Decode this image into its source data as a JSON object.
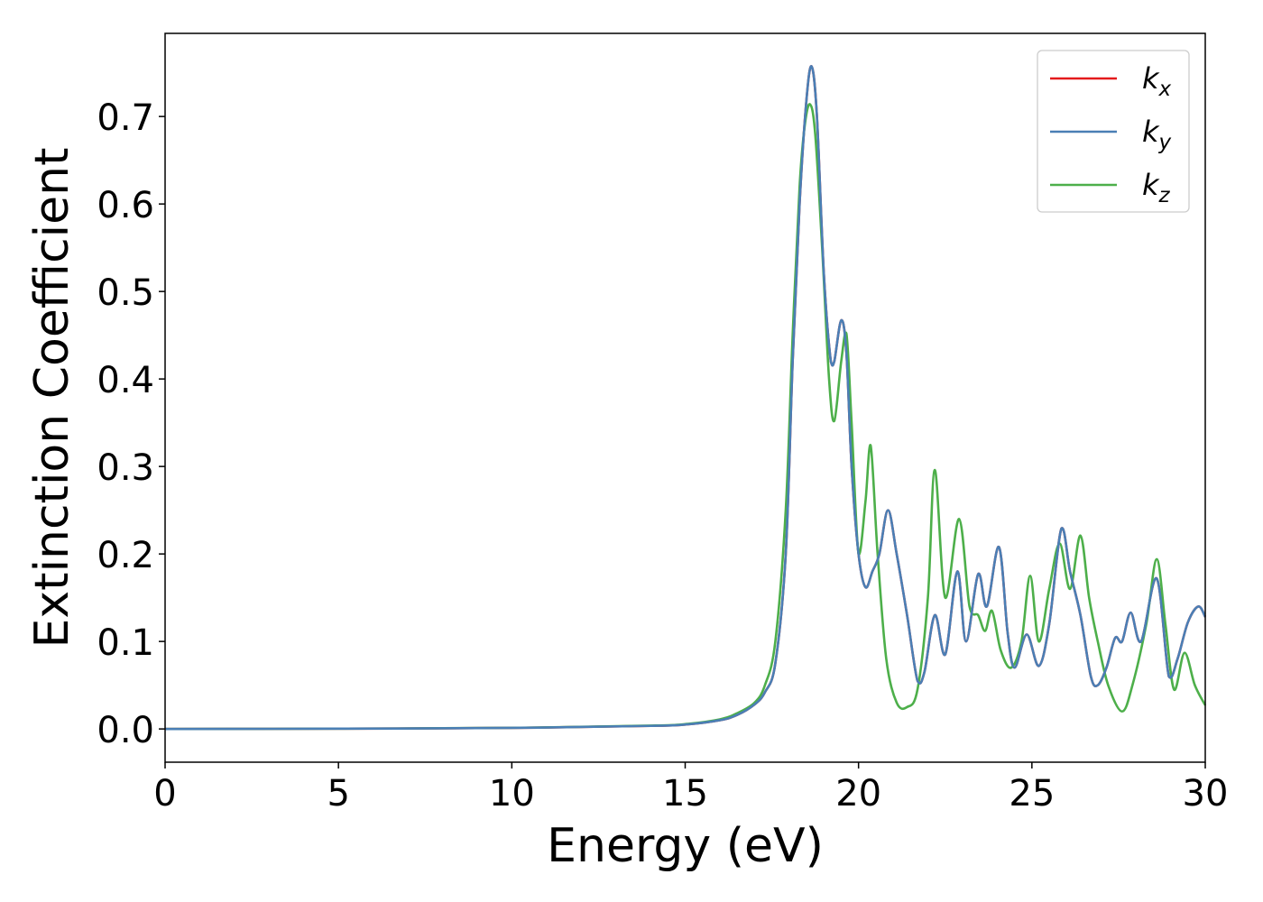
{
  "chart_data": {
    "type": "line",
    "xlabel": "Energy (eV)",
    "ylabel": "Extinction Coefficient",
    "xlim": [
      0,
      30
    ],
    "ylim": [
      -0.038,
      0.795
    ],
    "xticks": [
      0,
      5,
      10,
      15,
      20,
      25,
      30
    ],
    "yticks": [
      0.0,
      0.1,
      0.2,
      0.3,
      0.4,
      0.5,
      0.6,
      0.7
    ],
    "grid": false,
    "legend_position": "top-right",
    "series": [
      {
        "name": "k_x",
        "legend_base": "k",
        "legend_sub": "x",
        "color": "#e41a1c",
        "x": [
          0,
          5,
          10,
          14,
          15,
          16,
          16.5,
          17,
          17.3,
          17.6,
          17.9,
          18.1,
          18.3,
          18.5,
          18.65,
          18.8,
          19.0,
          19.2,
          19.3,
          19.5,
          19.65,
          19.8,
          20.0,
          20.2,
          20.4,
          20.6,
          20.85,
          21.1,
          21.4,
          21.7,
          21.9,
          22.2,
          22.5,
          22.85,
          23.1,
          23.45,
          23.7,
          24.05,
          24.3,
          24.5,
          24.85,
          25.2,
          25.5,
          25.85,
          26.1,
          26.4,
          26.7,
          26.9,
          27.15,
          27.4,
          27.6,
          27.85,
          28.15,
          28.6,
          28.95,
          29.2,
          29.5,
          29.8,
          30
        ],
        "y": [
          0.0,
          0.0003,
          0.0012,
          0.0035,
          0.005,
          0.01,
          0.016,
          0.028,
          0.042,
          0.075,
          0.2,
          0.42,
          0.6,
          0.72,
          0.757,
          0.7,
          0.52,
          0.42,
          0.42,
          0.467,
          0.43,
          0.3,
          0.2,
          0.162,
          0.18,
          0.2,
          0.25,
          0.2,
          0.13,
          0.055,
          0.065,
          0.13,
          0.085,
          0.18,
          0.1,
          0.177,
          0.14,
          0.208,
          0.11,
          0.07,
          0.108,
          0.072,
          0.12,
          0.229,
          0.18,
          0.13,
          0.06,
          0.05,
          0.07,
          0.104,
          0.1,
          0.133,
          0.1,
          0.172,
          0.06,
          0.08,
          0.122,
          0.14,
          0.128
        ]
      },
      {
        "name": "k_y",
        "legend_base": "k",
        "legend_sub": "y",
        "color": "#4a7fb5",
        "x": [
          0,
          5,
          10,
          14,
          15,
          16,
          16.5,
          17,
          17.3,
          17.6,
          17.9,
          18.1,
          18.3,
          18.5,
          18.65,
          18.8,
          19.0,
          19.2,
          19.3,
          19.5,
          19.65,
          19.8,
          20.0,
          20.2,
          20.4,
          20.6,
          20.85,
          21.1,
          21.4,
          21.7,
          21.9,
          22.2,
          22.5,
          22.85,
          23.1,
          23.45,
          23.7,
          24.05,
          24.3,
          24.5,
          24.85,
          25.2,
          25.5,
          25.85,
          26.1,
          26.4,
          26.7,
          26.9,
          27.15,
          27.4,
          27.6,
          27.85,
          28.15,
          28.6,
          28.95,
          29.2,
          29.5,
          29.8,
          30
        ],
        "y": [
          0.0,
          0.0003,
          0.0012,
          0.0035,
          0.005,
          0.01,
          0.016,
          0.028,
          0.042,
          0.075,
          0.2,
          0.42,
          0.6,
          0.72,
          0.757,
          0.7,
          0.52,
          0.42,
          0.42,
          0.467,
          0.43,
          0.3,
          0.2,
          0.162,
          0.18,
          0.2,
          0.25,
          0.2,
          0.13,
          0.055,
          0.065,
          0.13,
          0.085,
          0.18,
          0.1,
          0.177,
          0.14,
          0.208,
          0.11,
          0.07,
          0.108,
          0.072,
          0.12,
          0.229,
          0.18,
          0.13,
          0.06,
          0.05,
          0.07,
          0.104,
          0.1,
          0.133,
          0.1,
          0.172,
          0.06,
          0.08,
          0.122,
          0.14,
          0.128
        ]
      },
      {
        "name": "k_z",
        "legend_base": "k",
        "legend_sub": "z",
        "color": "#4daf4a",
        "x": [
          0,
          5,
          10,
          14,
          15,
          16,
          16.5,
          17,
          17.3,
          17.6,
          17.9,
          18.1,
          18.3,
          18.45,
          18.6,
          18.75,
          18.95,
          19.15,
          19.3,
          19.5,
          19.65,
          19.8,
          20.0,
          20.2,
          20.35,
          20.55,
          20.8,
          21.1,
          21.4,
          21.7,
          22.0,
          22.2,
          22.5,
          22.9,
          23.2,
          23.45,
          23.65,
          23.85,
          24.1,
          24.4,
          24.7,
          24.95,
          25.2,
          25.5,
          25.8,
          26.1,
          26.4,
          26.65,
          26.9,
          27.2,
          27.6,
          27.9,
          28.3,
          28.6,
          28.85,
          29.1,
          29.4,
          29.7,
          30
        ],
        "y": [
          0.0,
          0.0003,
          0.0013,
          0.0038,
          0.0055,
          0.011,
          0.018,
          0.03,
          0.05,
          0.1,
          0.25,
          0.45,
          0.62,
          0.69,
          0.714,
          0.68,
          0.55,
          0.4,
          0.352,
          0.42,
          0.452,
          0.35,
          0.2,
          0.26,
          0.324,
          0.2,
          0.08,
          0.03,
          0.025,
          0.045,
          0.15,
          0.296,
          0.15,
          0.24,
          0.14,
          0.13,
          0.112,
          0.135,
          0.09,
          0.07,
          0.1,
          0.175,
          0.1,
          0.16,
          0.212,
          0.16,
          0.221,
          0.15,
          0.1,
          0.05,
          0.02,
          0.05,
          0.12,
          0.194,
          0.12,
          0.045,
          0.087,
          0.05,
          0.027
        ]
      }
    ]
  }
}
